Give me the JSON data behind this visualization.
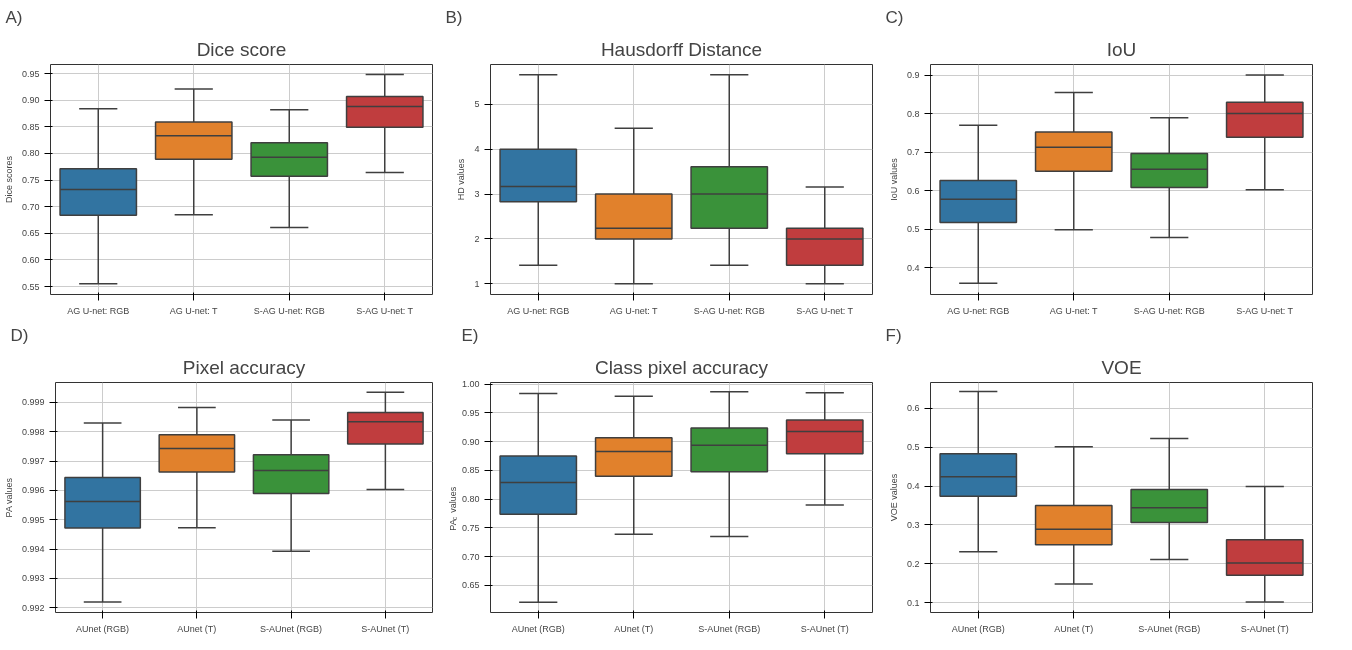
{
  "chart_data": [
    {
      "type": "box",
      "title": "Dice score",
      "ylabel": "Dice scores",
      "annotations": [
        "A)"
      ],
      "categories": [
        "AG U-net: RGB",
        "AG U-net: T",
        "S-AG U-net: RGB",
        "S-AG U-net: T"
      ],
      "colors": [
        "#3274a1",
        "#e1812c",
        "#3a923a",
        "#c03d3e"
      ],
      "grid": true,
      "ylim": [
        0.535,
        0.967
      ],
      "yticks": [
        0.55,
        {
          "value": 0.6,
          "label": "0.60"
        },
        0.65,
        {
          "value": 0.7,
          "label": "0.70"
        },
        0.75,
        {
          "value": 0.8,
          "label": "0.80"
        },
        0.85,
        {
          "value": 0.9,
          "label": "0.90"
        },
        0.95
      ],
      "boxes": [
        {
          "low": 0.555,
          "q1": 0.684,
          "median": 0.732,
          "q3": 0.771,
          "high": 0.884
        },
        {
          "low": 0.685,
          "q1": 0.789,
          "median": 0.833,
          "q3": 0.859,
          "high": 0.921
        },
        {
          "low": 0.661,
          "q1": 0.757,
          "median": 0.793,
          "q3": 0.82,
          "high": 0.882
        },
        {
          "low": 0.764,
          "q1": 0.849,
          "median": 0.888,
          "q3": 0.907,
          "high": 0.948
        }
      ]
    },
    {
      "type": "box",
      "title": "Hausdorff Distance",
      "ylabel": "HD values",
      "annotations": [
        "B)"
      ],
      "categories": [
        "AG U-net: RGB",
        "AG U-net: T",
        "S-AG U-net: RGB",
        "S-AG U-net: T"
      ],
      "colors": [
        "#3274a1",
        "#e1812c",
        "#3a923a",
        "#c03d3e"
      ],
      "grid": true,
      "ylim": [
        0.76,
        5.89
      ],
      "yticks": [
        1,
        2,
        3,
        4,
        5
      ],
      "boxes": [
        {
          "low": 1.41,
          "q1": 2.83,
          "median": 3.17,
          "q3": 4.0,
          "high": 5.66
        },
        {
          "low": 1.0,
          "q1": 2.0,
          "median": 2.24,
          "q3": 3.0,
          "high": 4.47
        },
        {
          "low": 1.41,
          "q1": 2.24,
          "median": 3.0,
          "q3": 3.61,
          "high": 5.66
        },
        {
          "low": 1.0,
          "q1": 1.41,
          "median": 2.0,
          "q3": 2.24,
          "high": 3.16
        }
      ]
    },
    {
      "type": "box",
      "title": "IoU",
      "ylabel": "IoU values",
      "annotations": [
        "C)"
      ],
      "categories": [
        "AG U-net: RGB",
        "AG U-net: T",
        "S-AG U-net: RGB",
        "S-AG U-net: T"
      ],
      "colors": [
        "#3274a1",
        "#e1812c",
        "#3a923a",
        "#c03d3e"
      ],
      "grid": true,
      "ylim": [
        0.331,
        0.928
      ],
      "yticks": [
        0.4,
        0.5,
        0.6,
        0.7,
        0.8,
        0.9
      ],
      "boxes": [
        {
          "low": 0.36,
          "q1": 0.518,
          "median": 0.578,
          "q3": 0.627,
          "high": 0.77
        },
        {
          "low": 0.499,
          "q1": 0.651,
          "median": 0.713,
          "q3": 0.753,
          "high": 0.855
        },
        {
          "low": 0.479,
          "q1": 0.609,
          "median": 0.656,
          "q3": 0.697,
          "high": 0.79
        },
        {
          "low": 0.603,
          "q1": 0.739,
          "median": 0.801,
          "q3": 0.83,
          "high": 0.901
        }
      ]
    },
    {
      "type": "box",
      "title": "Pixel accuracy",
      "ylabel": "PA values",
      "annotations": [
        "D)"
      ],
      "categories": [
        "AUnet (RGB)",
        "AUnet (T)",
        "S-AUnet (RGB)",
        "S-AUnet (T)"
      ],
      "colors": [
        "#3274a1",
        "#e1812c",
        "#3a923a",
        "#c03d3e"
      ],
      "grid": true,
      "ylim": [
        0.99184,
        0.99968
      ],
      "yticks": [
        0.992,
        0.993,
        0.994,
        0.995,
        0.996,
        0.997,
        0.998,
        0.999
      ],
      "boxes": [
        {
          "low": 0.9922,
          "q1": 0.99472,
          "median": 0.99562,
          "q3": 0.99644,
          "high": 0.9983
        },
        {
          "low": 0.99473,
          "q1": 0.99663,
          "median": 0.99743,
          "q3": 0.9979,
          "high": 0.99883
        },
        {
          "low": 0.99393,
          "q1": 0.9959,
          "median": 0.99668,
          "q3": 0.99722,
          "high": 0.9984
        },
        {
          "low": 0.99603,
          "q1": 0.99758,
          "median": 0.99834,
          "q3": 0.99866,
          "high": 0.99935
        }
      ]
    },
    {
      "type": "box",
      "title": "Class pixel accuracy",
      "ylabel": "PA$_{c}$ values",
      "annotations": [
        "E)"
      ],
      "categories": [
        "AUnet (RGB)",
        "AUnet (T)",
        "S-AUnet (RGB)",
        "S-AUnet (T)"
      ],
      "colors": [
        "#3274a1",
        "#e1812c",
        "#3a923a",
        "#c03d3e"
      ],
      "grid": true,
      "ylim": [
        0.603,
        1.003
      ],
      "yticks": [
        {
          "value": 0.65,
          "label": "0.65"
        },
        {
          "value": 0.7,
          "label": "0.70"
        },
        {
          "value": 0.75,
          "label": "0.75"
        },
        {
          "value": 0.8,
          "label": "0.80"
        },
        {
          "value": 0.85,
          "label": "0.85"
        },
        {
          "value": 0.9,
          "label": "0.90"
        },
        {
          "value": 0.95,
          "label": "0.95"
        },
        {
          "value": 1.0,
          "label": "1.00"
        }
      ],
      "boxes": [
        {
          "low": 0.621,
          "q1": 0.774,
          "median": 0.829,
          "q3": 0.875,
          "high": 0.984
        },
        {
          "low": 0.739,
          "q1": 0.84,
          "median": 0.883,
          "q3": 0.907,
          "high": 0.979
        },
        {
          "low": 0.735,
          "q1": 0.848,
          "median": 0.894,
          "q3": 0.924,
          "high": 0.987
        },
        {
          "low": 0.79,
          "q1": 0.879,
          "median": 0.918,
          "q3": 0.938,
          "high": 0.985
        }
      ]
    },
    {
      "type": "box",
      "title": "VOE",
      "ylabel": "VOE values",
      "annotations": [
        "F)"
      ],
      "categories": [
        "AUnet (RGB)",
        "AUnet (T)",
        "S-AUnet (RGB)",
        "S-AUnet (T)"
      ],
      "colors": [
        "#3274a1",
        "#e1812c",
        "#3a923a",
        "#c03d3e"
      ],
      "grid": true,
      "ylim": [
        0.075,
        0.666
      ],
      "yticks": [
        0.1,
        0.2,
        0.3,
        0.4,
        0.5,
        0.6
      ],
      "boxes": [
        {
          "low": 0.231,
          "q1": 0.374,
          "median": 0.424,
          "q3": 0.483,
          "high": 0.643
        },
        {
          "low": 0.148,
          "q1": 0.249,
          "median": 0.289,
          "q3": 0.35,
          "high": 0.501
        },
        {
          "low": 0.211,
          "q1": 0.306,
          "median": 0.344,
          "q3": 0.391,
          "high": 0.522
        },
        {
          "low": 0.102,
          "q1": 0.171,
          "median": 0.202,
          "q3": 0.262,
          "high": 0.399
        }
      ]
    }
  ]
}
